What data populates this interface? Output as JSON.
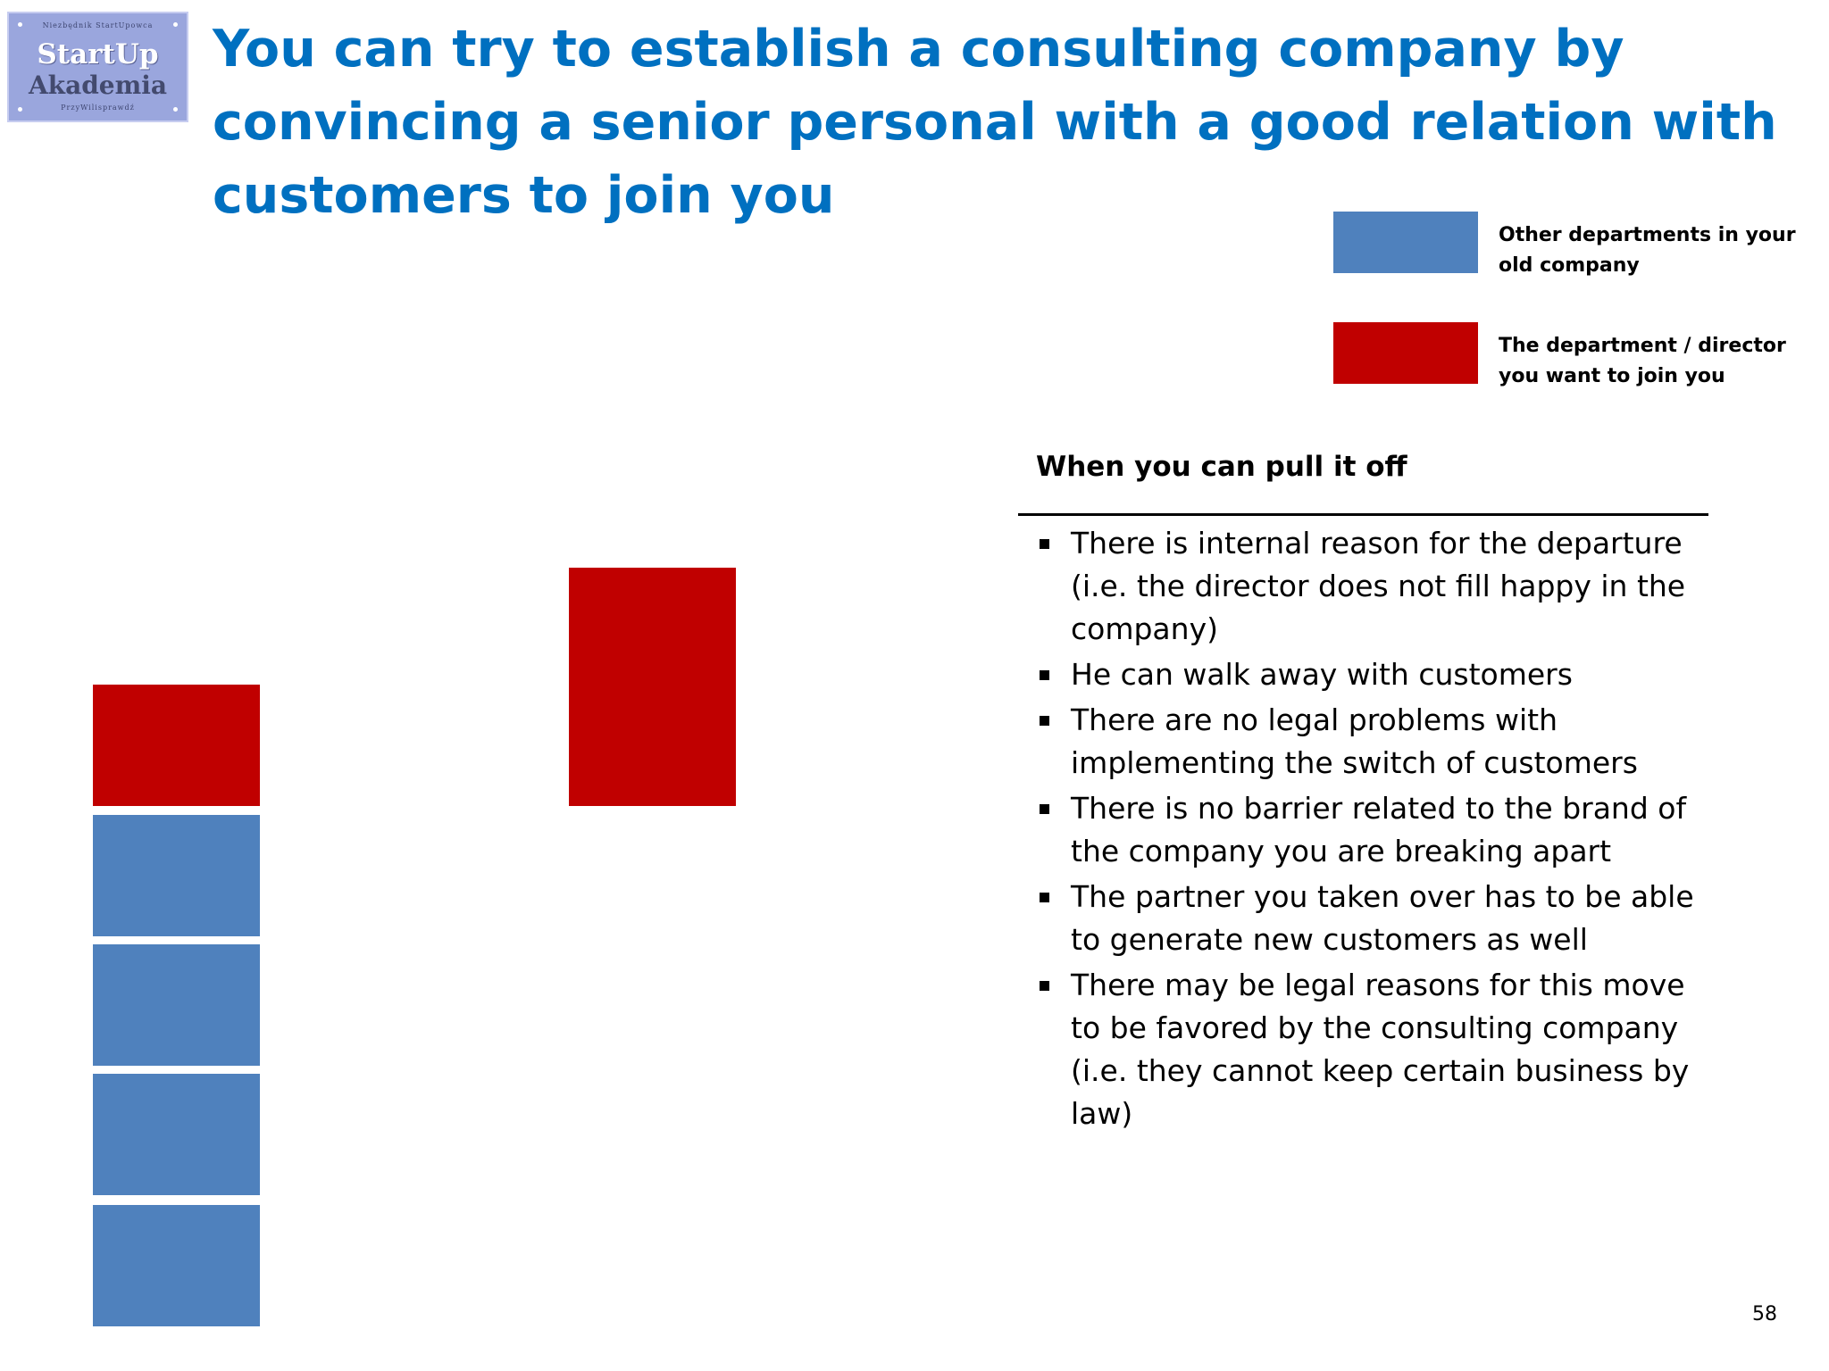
{
  "logo": {
    "top_text": "Niezbędnik StartUpowca",
    "line1": "StartUp",
    "line2": "Akademia",
    "bottom_text": "PrzyWilisprawdź"
  },
  "title": "You can try to establish a consulting company by convincing a senior personal with a good relation with customers to join you",
  "legend": [
    {
      "label": "Other departments in your old company",
      "color": "#4f81bd"
    },
    {
      "label": "The department / director you want to  join you",
      "color": "#c00000"
    }
  ],
  "diagram": {
    "old_company_stack": {
      "top_block_color": "#c00000",
      "lower_blocks_color": "#4f81bd",
      "lower_block_count": 4
    },
    "detached_block_color": "#c00000"
  },
  "conditions": {
    "heading": "When you can pull it off",
    "items": [
      "There is internal reason for the departure (i.e. the director does not fill happy in the company)",
      "He can walk away with customers",
      "There are no legal problems with implementing the switch of customers",
      "There is no barrier related to the brand of the company you are breaking apart",
      "The partner you taken over has to be able to generate new customers as well",
      "There may be legal reasons for this  move to be favored by the consulting company (i.e. they cannot keep certain business by law)"
    ]
  },
  "page_number": "58"
}
